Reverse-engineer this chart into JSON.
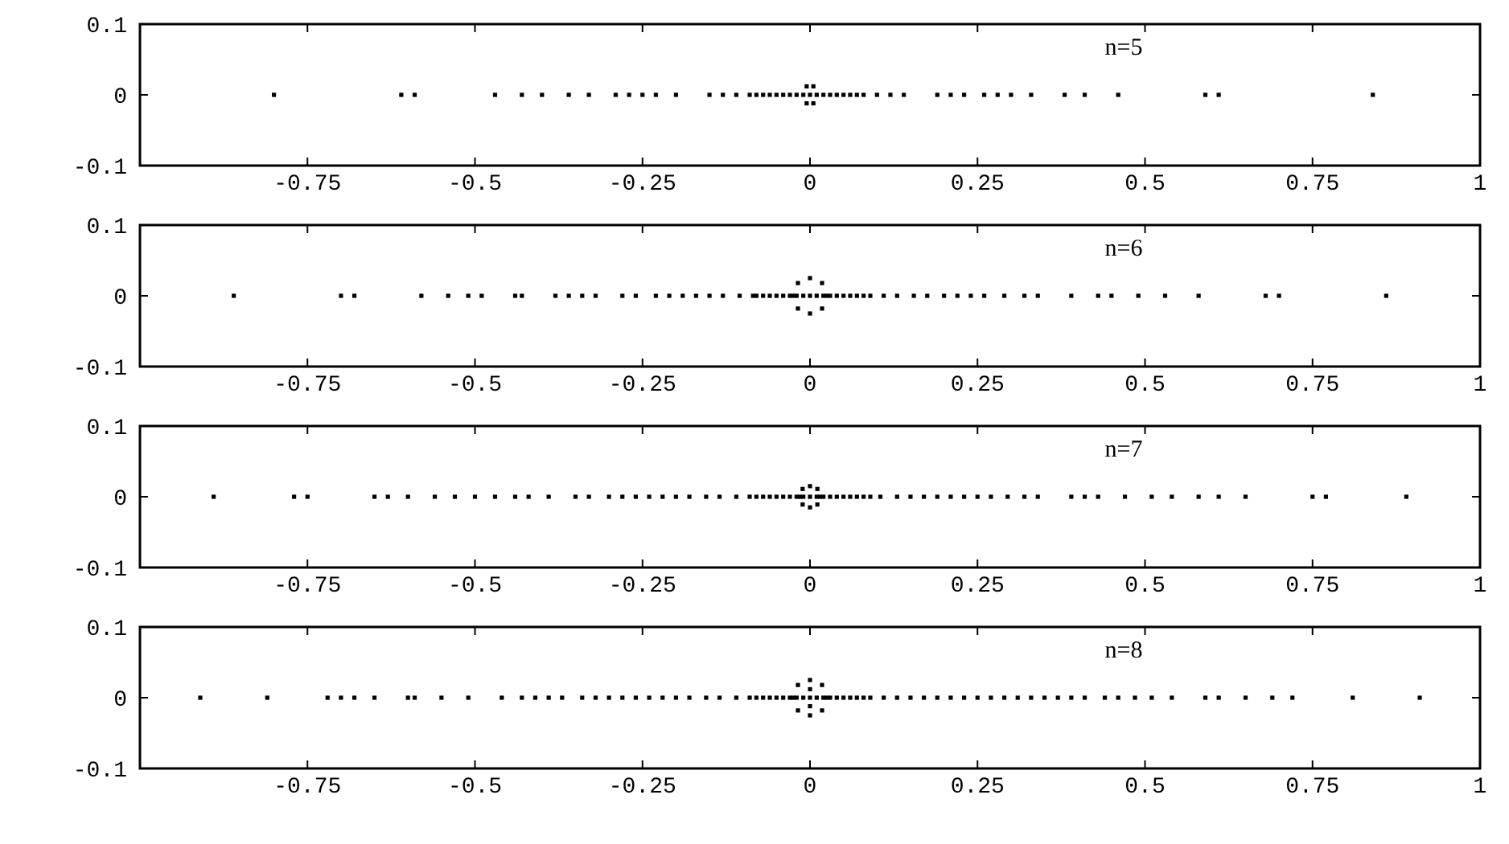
{
  "chart_data": [
    {
      "type": "scatter",
      "annotations": [
        "n=5"
      ],
      "xlim": [
        -1,
        1
      ],
      "xticks": [
        -0.75,
        -0.5,
        -0.25,
        0,
        0.25,
        0.5,
        0.75,
        1
      ],
      "ylim": [
        -0.1,
        0.1
      ],
      "yticks": [
        -0.1,
        0,
        0.1
      ],
      "marker": "square",
      "color": "#000000",
      "x": [
        -0.8,
        -0.61,
        -0.59,
        -0.47,
        -0.43,
        -0.4,
        -0.36,
        -0.33,
        -0.29,
        -0.27,
        -0.25,
        -0.23,
        -0.2,
        -0.15,
        -0.13,
        -0.11,
        -0.09,
        -0.08,
        -0.07,
        -0.06,
        -0.05,
        -0.04,
        -0.03,
        -0.02,
        -0.01,
        0,
        0.01,
        0.02,
        0.03,
        0.04,
        0.05,
        0.06,
        0.07,
        0.08,
        0.1,
        0.12,
        0.14,
        0.19,
        0.21,
        0.23,
        0.26,
        0.28,
        0.3,
        0.33,
        0.38,
        0.41,
        0.46,
        0.59,
        0.61,
        0.84,
        -0.005,
        0.005,
        -0.005,
        0.005
      ],
      "values": [
        0,
        0,
        0,
        0,
        0,
        0,
        0,
        0,
        0,
        0,
        0,
        0,
        0,
        0,
        0,
        0,
        0,
        0,
        0,
        0,
        0,
        0,
        0,
        0,
        0,
        0,
        0,
        0,
        0,
        0,
        0,
        0,
        0,
        0,
        0,
        0,
        0,
        0,
        0,
        0,
        0,
        0,
        0,
        0,
        0,
        0,
        0,
        0,
        0,
        0,
        0.012,
        0.012,
        -0.012,
        -0.012
      ]
    },
    {
      "type": "scatter",
      "annotations": [
        "n=6"
      ],
      "xlim": [
        -1,
        1
      ],
      "xticks": [
        -0.75,
        -0.5,
        -0.25,
        0,
        0.25,
        0.5,
        0.75,
        1
      ],
      "ylim": [
        -0.1,
        0.1
      ],
      "yticks": [
        -0.1,
        0,
        0.1
      ],
      "marker": "square",
      "color": "#000000",
      "x": [
        -0.86,
        -0.7,
        -0.68,
        -0.58,
        -0.54,
        -0.51,
        -0.49,
        -0.44,
        -0.43,
        -0.38,
        -0.36,
        -0.34,
        -0.32,
        -0.28,
        -0.26,
        -0.23,
        -0.21,
        -0.19,
        -0.17,
        -0.15,
        -0.13,
        -0.105,
        -0.085,
        -0.08,
        -0.07,
        -0.06,
        -0.05,
        -0.04,
        -0.03,
        -0.02,
        -0.01,
        0,
        0.01,
        0.02,
        0.03,
        0.04,
        0.05,
        0.06,
        0.07,
        0.08,
        0.09,
        0.11,
        0.13,
        0.155,
        0.175,
        0.2,
        0.22,
        0.24,
        0.26,
        0.29,
        0.32,
        0.34,
        0.39,
        0.43,
        0.45,
        0.49,
        0.53,
        0.58,
        0.68,
        0.7,
        0.86,
        0.025,
        0.018,
        0,
        -0.018,
        -0.025,
        -0.018,
        0,
        0.018
      ],
      "values": [
        0,
        0,
        0,
        0,
        0,
        0,
        0,
        0,
        0,
        0,
        0,
        0,
        0,
        0,
        0,
        0,
        0,
        0,
        0,
        0,
        0,
        0,
        0,
        0,
        0,
        0,
        0,
        0,
        0,
        0,
        0,
        0,
        0,
        0,
        0,
        0,
        0,
        0,
        0,
        0,
        0,
        0,
        0,
        0,
        0,
        0,
        0,
        0,
        0,
        0,
        0,
        0,
        0,
        0,
        0,
        0,
        0,
        0,
        0,
        0,
        0,
        0,
        0.018,
        0.025,
        0.018,
        0,
        -0.018,
        -0.025,
        -0.018
      ]
    },
    {
      "type": "scatter",
      "annotations": [
        "n=7"
      ],
      "xlim": [
        -1,
        1
      ],
      "xticks": [
        -0.75,
        -0.5,
        -0.25,
        0,
        0.25,
        0.5,
        0.75,
        1
      ],
      "ylim": [
        -0.1,
        0.1
      ],
      "yticks": [
        -0.1,
        0,
        0.1
      ],
      "marker": "square",
      "color": "#000000",
      "x": [
        -0.89,
        -0.77,
        -0.75,
        -0.65,
        -0.63,
        -0.6,
        -0.56,
        -0.53,
        -0.5,
        -0.47,
        -0.44,
        -0.42,
        -0.39,
        -0.35,
        -0.33,
        -0.3,
        -0.28,
        -0.26,
        -0.24,
        -0.22,
        -0.2,
        -0.18,
        -0.155,
        -0.135,
        -0.11,
        -0.09,
        -0.08,
        -0.07,
        -0.06,
        -0.05,
        -0.04,
        -0.03,
        -0.02,
        -0.01,
        0,
        0.01,
        0.02,
        0.03,
        0.04,
        0.05,
        0.06,
        0.07,
        0.08,
        0.09,
        0.105,
        0.13,
        0.15,
        0.17,
        0.19,
        0.21,
        0.23,
        0.25,
        0.27,
        0.295,
        0.32,
        0.34,
        0.39,
        0.41,
        0.43,
        0.47,
        0.51,
        0.54,
        0.58,
        0.61,
        0.65,
        0.75,
        0.77,
        0.89,
        0.015,
        0.011,
        0,
        -0.011,
        -0.015,
        -0.011,
        0,
        0.011
      ],
      "values": [
        0,
        0,
        0,
        0,
        0,
        0,
        0,
        0,
        0,
        0,
        0,
        0,
        0,
        0,
        0,
        0,
        0,
        0,
        0,
        0,
        0,
        0,
        0,
        0,
        0,
        0,
        0,
        0,
        0,
        0,
        0,
        0,
        0,
        0,
        0,
        0,
        0,
        0,
        0,
        0,
        0,
        0,
        0,
        0,
        0,
        0,
        0,
        0,
        0,
        0,
        0,
        0,
        0,
        0,
        0,
        0,
        0,
        0,
        0,
        0,
        0,
        0,
        0,
        0,
        0,
        0,
        0,
        0,
        0,
        0.011,
        0.015,
        0.011,
        0,
        -0.011,
        -0.015,
        -0.011
      ]
    },
    {
      "type": "scatter",
      "annotations": [
        "n=8"
      ],
      "xlim": [
        -1,
        1
      ],
      "xticks": [
        -0.75,
        -0.5,
        -0.25,
        0,
        0.25,
        0.5,
        0.75,
        1
      ],
      "ylim": [
        -0.1,
        0.1
      ],
      "yticks": [
        -0.1,
        0,
        0.1
      ],
      "marker": "square",
      "color": "#000000",
      "x": [
        -0.91,
        -0.81,
        -0.72,
        -0.7,
        -0.68,
        -0.65,
        -0.6,
        -0.59,
        -0.55,
        -0.51,
        -0.46,
        -0.43,
        -0.41,
        -0.39,
        -0.37,
        -0.34,
        -0.32,
        -0.3,
        -0.28,
        -0.26,
        -0.24,
        -0.22,
        -0.2,
        -0.18,
        -0.155,
        -0.135,
        -0.11,
        -0.09,
        -0.08,
        -0.07,
        -0.06,
        -0.05,
        -0.04,
        -0.03,
        -0.02,
        -0.01,
        0,
        0.01,
        0.02,
        0.03,
        0.04,
        0.05,
        0.06,
        0.07,
        0.08,
        0.09,
        0.11,
        0.13,
        0.15,
        0.17,
        0.19,
        0.21,
        0.23,
        0.25,
        0.27,
        0.29,
        0.31,
        0.33,
        0.35,
        0.37,
        0.39,
        0.41,
        0.44,
        0.46,
        0.485,
        0.51,
        0.54,
        0.59,
        0.61,
        0.65,
        0.69,
        0.72,
        0.81,
        0.91,
        0.025,
        0.018,
        0,
        -0.018,
        -0.025,
        -0.018,
        0,
        0.018,
        0,
        0
      ],
      "values": [
        0,
        0,
        0,
        0,
        0,
        0,
        0,
        0,
        0,
        0,
        0,
        0,
        0,
        0,
        0,
        0,
        0,
        0,
        0,
        0,
        0,
        0,
        0,
        0,
        0,
        0,
        0,
        0,
        0,
        0,
        0,
        0,
        0,
        0,
        0,
        0,
        0,
        0,
        0,
        0,
        0,
        0,
        0,
        0,
        0,
        0,
        0,
        0,
        0,
        0,
        0,
        0,
        0,
        0,
        0,
        0,
        0,
        0,
        0,
        0,
        0,
        0,
        0,
        0,
        0,
        0,
        0,
        0,
        0,
        0,
        0,
        0,
        0,
        0,
        0,
        0.018,
        0.025,
        0.018,
        0,
        -0.018,
        -0.025,
        -0.018,
        0.012,
        -0.012
      ]
    }
  ]
}
